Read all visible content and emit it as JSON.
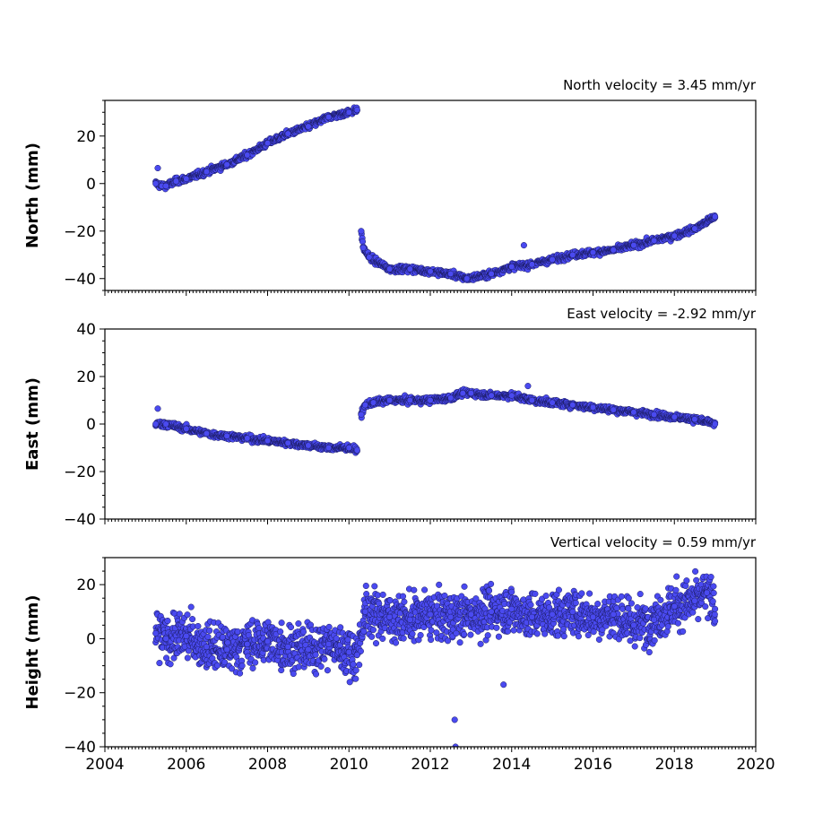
{
  "chart_data": [
    {
      "type": "scatter",
      "title": "North velocity = 3.45 mm/yr",
      "ylabel": "North (mm)",
      "xlim": [
        2004,
        2020
      ],
      "ylim": [
        -45,
        35
      ],
      "yticks": [
        -40,
        -20,
        0,
        20
      ],
      "yticks_labels": [
        "−40",
        "−20",
        "0",
        "20"
      ],
      "show_x_tick_labels": false,
      "color": "#4a4af0",
      "series": [
        {
          "x": [
            2005.25,
            2005.3,
            2005.4,
            2005.5,
            2005.75,
            2006.0,
            2006.5,
            2007.0,
            2007.5,
            2008.0,
            2008.5,
            2009.0,
            2009.5,
            2010.0,
            2010.2
          ],
          "y": [
            0,
            6.5,
            -1,
            -1,
            1,
            2,
            5,
            8,
            12,
            17,
            21,
            24,
            28,
            30,
            31
          ]
        },
        {
          "x": [
            2010.3,
            2010.35,
            2010.5,
            2011.0,
            2011.5,
            2012.0,
            2012.5,
            2012.9,
            2013.5,
            2014.0,
            2014.3,
            2014.5,
            2015.0,
            2015.5,
            2016.0,
            2016.5,
            2017.0,
            2017.5,
            2018.0,
            2018.5,
            2019.0
          ],
          "y": [
            -20,
            -27,
            -31,
            -36,
            -36,
            -37,
            -38,
            -40,
            -38,
            -35,
            -26,
            -34,
            -32,
            -30,
            -29,
            -28,
            -26,
            -24,
            -22,
            -19,
            -14
          ]
        }
      ]
    },
    {
      "type": "scatter",
      "title": "East velocity = -2.92 mm/yr",
      "ylabel": "East (mm)",
      "xlim": [
        2004,
        2020
      ],
      "ylim": [
        -40,
        40
      ],
      "yticks": [
        -40,
        -20,
        0,
        20,
        40
      ],
      "yticks_labels": [
        "−40",
        "−20",
        "0",
        "20",
        "40"
      ],
      "show_x_tick_labels": false,
      "color": "#4a4af0",
      "series": [
        {
          "x": [
            2005.25,
            2005.3,
            2005.5,
            2006.0,
            2006.5,
            2007.0,
            2007.5,
            2008.0,
            2008.5,
            2009.0,
            2009.5,
            2010.0,
            2010.2
          ],
          "y": [
            0,
            6.5,
            0,
            -2,
            -4,
            -5,
            -6,
            -7,
            -8,
            -9,
            -10,
            -10,
            -11
          ]
        },
        {
          "x": [
            2010.3,
            2010.4,
            2010.6,
            2011.0,
            2011.5,
            2012.0,
            2012.5,
            2012.8,
            2013.0,
            2013.5,
            2014.0,
            2014.4,
            2014.5,
            2015.0,
            2015.5,
            2016.0,
            2016.5,
            2017.0,
            2017.5,
            2018.0,
            2018.5,
            2019.0
          ],
          "y": [
            4,
            8,
            9,
            10,
            10,
            10,
            11,
            13,
            13,
            12,
            12,
            16,
            10,
            9,
            8,
            7,
            6,
            5,
            4,
            3,
            2,
            0
          ]
        }
      ]
    },
    {
      "type": "scatter",
      "title": "Vertical velocity = 0.59 mm/yr",
      "ylabel": "Height (mm)",
      "xlim": [
        2004,
        2020
      ],
      "ylim": [
        -40,
        30
      ],
      "yticks": [
        -40,
        -20,
        0,
        20
      ],
      "yticks_labels": [
        "−40",
        "−20",
        "0",
        "20"
      ],
      "xticks": [
        2004,
        2006,
        2008,
        2010,
        2012,
        2014,
        2016,
        2018,
        2020
      ],
      "show_x_tick_labels": true,
      "color": "#4a4af0",
      "series": [
        {
          "x": [
            2005.25,
            2005.5,
            2006.0,
            2006.5,
            2007.0,
            2007.5,
            2008.0,
            2008.5,
            2009.0,
            2009.5,
            2010.0,
            2010.2,
            2010.4,
            2011.0,
            2011.5,
            2012.0,
            2012.5,
            2012.6,
            2012.62,
            2013.0,
            2013.5,
            2013.8,
            2014.0,
            2014.5,
            2015.0,
            2015.5,
            2016.0,
            2016.5,
            2017.0,
            2017.5,
            2018.0,
            2018.5,
            2018.8,
            2019.0
          ],
          "y": [
            2,
            0,
            1,
            -3,
            -4,
            -2,
            -1,
            -3,
            -4,
            -2,
            -5,
            -6,
            10,
            8,
            7,
            9,
            8,
            -30,
            -40,
            9,
            10,
            -17,
            11,
            8,
            9,
            10,
            8,
            9,
            5,
            7,
            12,
            14,
            17,
            11
          ]
        }
      ]
    }
  ]
}
